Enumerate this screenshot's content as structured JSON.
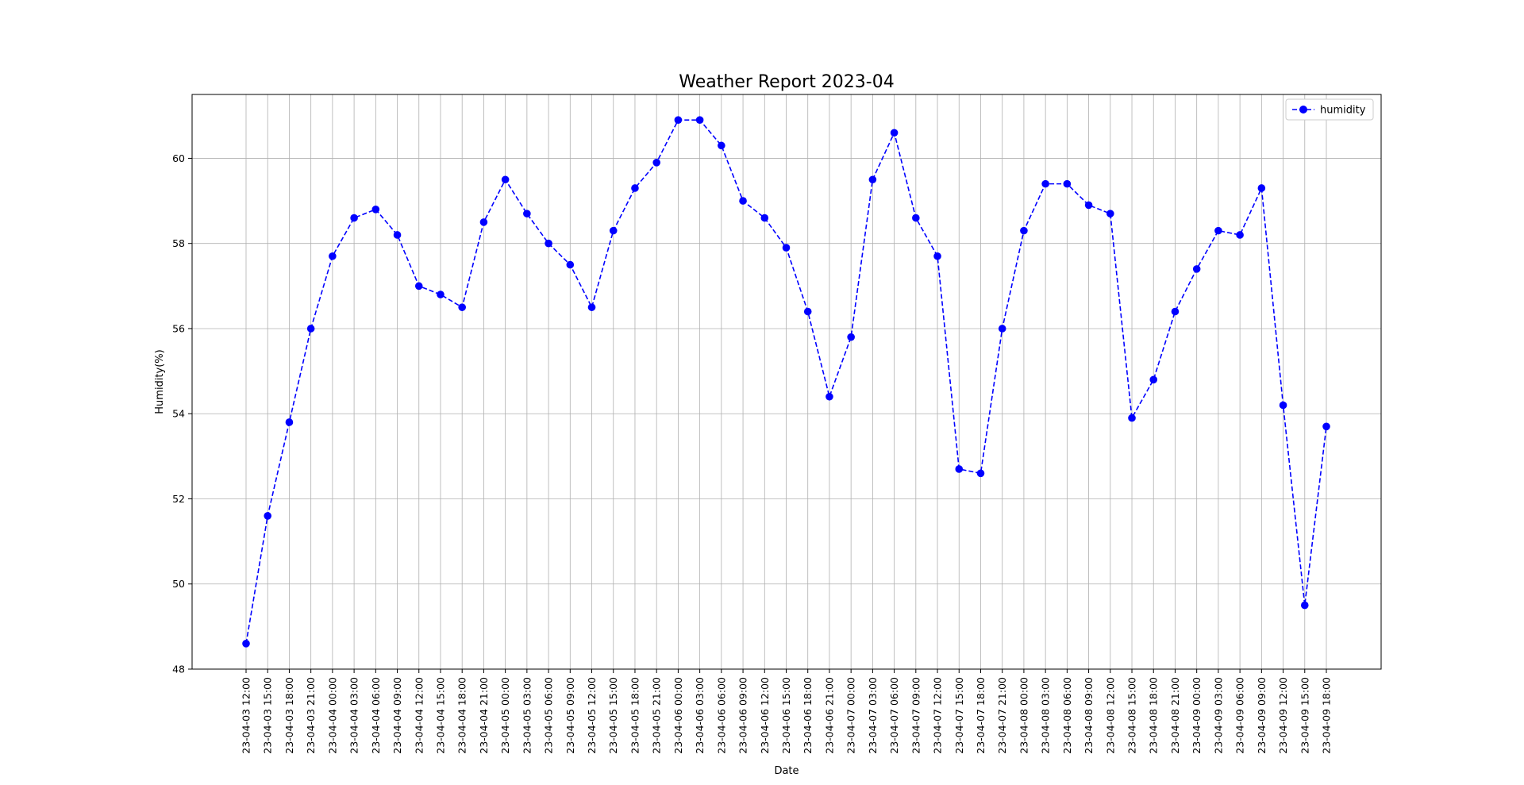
{
  "chart_data": {
    "type": "line",
    "title": "Weather Report 2023-04",
    "xlabel": "Date",
    "ylabel": "Humidity(%)",
    "ylim": [
      48,
      61.5
    ],
    "yticks": [
      48,
      50,
      52,
      54,
      56,
      58,
      60
    ],
    "grid": true,
    "legend_position": "top-right",
    "categories": [
      "23-04-03 12:00",
      "23-04-03 15:00",
      "23-04-03 18:00",
      "23-04-03 21:00",
      "23-04-04 00:00",
      "23-04-04 03:00",
      "23-04-04 06:00",
      "23-04-04 09:00",
      "23-04-04 12:00",
      "23-04-04 15:00",
      "23-04-04 18:00",
      "23-04-04 21:00",
      "23-04-05 00:00",
      "23-04-05 03:00",
      "23-04-05 06:00",
      "23-04-05 09:00",
      "23-04-05 12:00",
      "23-04-05 15:00",
      "23-04-05 18:00",
      "23-04-05 21:00",
      "23-04-06 00:00",
      "23-04-06 03:00",
      "23-04-06 06:00",
      "23-04-06 09:00",
      "23-04-06 12:00",
      "23-04-06 15:00",
      "23-04-06 18:00",
      "23-04-06 21:00",
      "23-04-07 00:00",
      "23-04-07 03:00",
      "23-04-07 06:00",
      "23-04-07 09:00",
      "23-04-07 12:00",
      "23-04-07 15:00",
      "23-04-07 18:00",
      "23-04-07 21:00",
      "23-04-08 00:00",
      "23-04-08 03:00",
      "23-04-08 06:00",
      "23-04-08 09:00",
      "23-04-08 12:00",
      "23-04-08 15:00",
      "23-04-08 18:00",
      "23-04-08 21:00",
      "23-04-09 00:00",
      "23-04-09 03:00",
      "23-04-09 06:00",
      "23-04-09 09:00",
      "23-04-09 12:00",
      "23-04-09 15:00",
      "23-04-09 18:00"
    ],
    "series": [
      {
        "name": "humidity",
        "color": "#0000ff",
        "line_style": "dashed",
        "marker": "circle",
        "values": [
          48.6,
          51.6,
          53.8,
          56.0,
          57.7,
          58.6,
          58.8,
          58.2,
          57.0,
          56.8,
          56.5,
          58.5,
          59.5,
          58.7,
          58.0,
          57.5,
          56.5,
          58.3,
          59.3,
          59.9,
          60.9,
          60.9,
          60.3,
          59.0,
          58.6,
          57.9,
          56.4,
          54.4,
          55.8,
          59.5,
          60.6,
          58.6,
          57.7,
          52.7,
          52.6,
          56.0,
          58.3,
          59.4,
          59.4,
          58.9,
          58.7,
          53.9,
          54.8,
          56.4,
          57.4,
          58.3,
          58.2,
          59.3,
          54.2,
          49.5,
          53.7
        ]
      }
    ]
  }
}
